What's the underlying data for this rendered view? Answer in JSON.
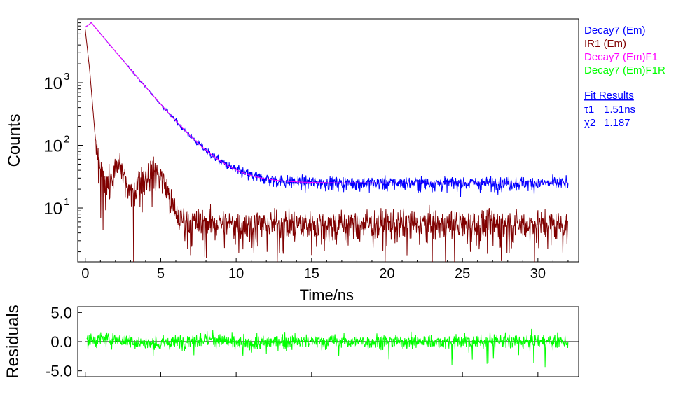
{
  "chart_data": [
    {
      "type": "line",
      "title": "",
      "xlabel": "Time/ns",
      "ylabel": "Counts",
      "yscale": "log",
      "xlim": [
        -0.5,
        32.7
      ],
      "ylim": [
        1.38,
        10400
      ],
      "xticks": [
        0,
        5,
        10,
        15,
        20,
        25,
        30
      ],
      "yticks": [
        {
          "value": 10,
          "base": "10",
          "exp": "1"
        },
        {
          "value": 100,
          "base": "10",
          "exp": "2"
        },
        {
          "value": 1000,
          "base": "10",
          "exp": "3"
        }
      ],
      "legend_position": "right",
      "series": [
        {
          "name": "Decay7 (Em)",
          "color": "#0000ff",
          "model": "decay",
          "peak": 9000,
          "peak_time": 0.4,
          "tau_ns": 1.51,
          "background": 25,
          "noisy": true
        },
        {
          "name": "IR1 (Em)",
          "color": "#800000",
          "model": "irf",
          "x": [
            0,
            0.3,
            0.6,
            0.8,
            1.0,
            1.3,
            1.6,
            2.0,
            2.3,
            2.6,
            3.0,
            3.3,
            3.6,
            4.0,
            4.5,
            5.0,
            5.4,
            5.8,
            6.2,
            7,
            10,
            20,
            32
          ],
          "y": [
            7000,
            1500,
            200,
            55,
            40,
            28,
            25,
            38,
            52,
            30,
            16,
            20,
            28,
            32,
            38,
            33,
            20,
            10,
            7,
            6,
            5.5,
            5.5,
            5.5
          ],
          "noisy": true
        },
        {
          "name": "Decay7 (Em)F1",
          "color": "#ff00ff",
          "model": "decay",
          "peak": 9000,
          "peak_time": 0.4,
          "tau_ns": 1.51,
          "background": 25,
          "noisy": false
        },
        {
          "name": "Decay7 (Em)F1R",
          "color": "#00ff00",
          "model": "residual",
          "noisy": true
        }
      ],
      "fit_results": {
        "header": "Fit Results",
        "rows": [
          {
            "label": "τ1",
            "value": "1.51ns"
          },
          {
            "label": "χ2",
            "value": "1.187"
          }
        ]
      }
    },
    {
      "type": "line",
      "ylabel": "Residuals",
      "xlim": [
        -0.5,
        32.7
      ],
      "ylim": [
        -6,
        6
      ],
      "yticks": [
        "5.0",
        "0.0",
        "-5.0"
      ],
      "ytick_values": [
        5,
        0,
        -5
      ]
    }
  ]
}
